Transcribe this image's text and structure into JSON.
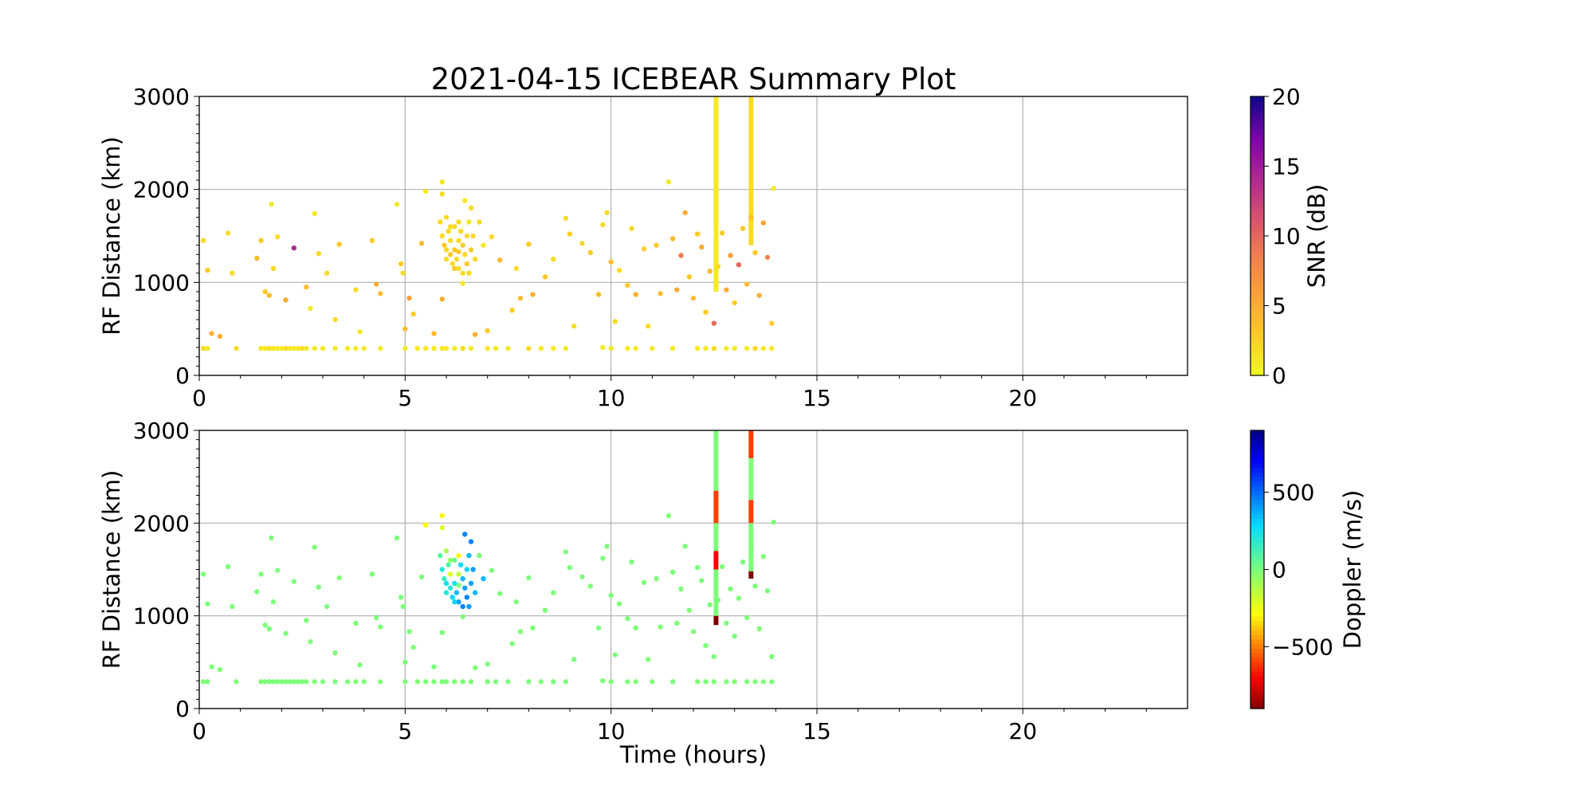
{
  "title": "2021-04-15 ICEBEAR Summary Plot",
  "chart_data": [
    {
      "type": "scatter",
      "panel": "snr",
      "xlabel": "",
      "ylabel": "RF Distance (km)",
      "xlim": [
        0,
        24
      ],
      "ylim": [
        0,
        3000
      ],
      "xticks": [
        "0",
        "5",
        "10",
        "15",
        "20"
      ],
      "yticks": [
        "0",
        "1000",
        "2000",
        "3000"
      ],
      "grid": true,
      "color_by": "snr",
      "colorbar": {
        "label": "SNR (dB)",
        "range": [
          0,
          20
        ],
        "ticks": [
          "0",
          "5",
          "10",
          "15",
          "20"
        ],
        "colormap": "plasma_r"
      }
    },
    {
      "type": "scatter",
      "panel": "doppler",
      "xlabel": "Time (hours)",
      "ylabel": "RF Distance (km)",
      "xlim": [
        0,
        24
      ],
      "ylim": [
        0,
        3000
      ],
      "xticks": [
        "0",
        "5",
        "10",
        "15",
        "20"
      ],
      "yticks": [
        "0",
        "1000",
        "2000",
        "3000"
      ],
      "grid": true,
      "color_by": "doppler",
      "colorbar": {
        "label": "Doppler (m/s)",
        "range": [
          -900,
          900
        ],
        "ticks": [
          "−500",
          "0",
          "500"
        ],
        "tick_values": [
          -500,
          0,
          500
        ],
        "colormap": "jet"
      }
    }
  ],
  "points_columns": [
    "time_h",
    "range_km",
    "snr_db",
    "doppler_ms"
  ],
  "points": [
    [
      0.1,
      290,
      2,
      0
    ],
    [
      0.2,
      290,
      1,
      0
    ],
    [
      0.9,
      290,
      2,
      0
    ],
    [
      1.5,
      290,
      1,
      0
    ],
    [
      1.6,
      290,
      1,
      0
    ],
    [
      1.7,
      290,
      2,
      0
    ],
    [
      1.8,
      290,
      1,
      0
    ],
    [
      1.9,
      290,
      1,
      0
    ],
    [
      2.0,
      290,
      1,
      0
    ],
    [
      2.1,
      290,
      2,
      0
    ],
    [
      2.2,
      290,
      1,
      0
    ],
    [
      2.3,
      290,
      1,
      0
    ],
    [
      2.4,
      290,
      1,
      0
    ],
    [
      2.5,
      290,
      2,
      0
    ],
    [
      2.6,
      290,
      1,
      0
    ],
    [
      2.8,
      290,
      1,
      0
    ],
    [
      3.0,
      290,
      1,
      0
    ],
    [
      3.3,
      290,
      1,
      0
    ],
    [
      3.6,
      290,
      1,
      0
    ],
    [
      3.8,
      290,
      1,
      0
    ],
    [
      4.0,
      290,
      1,
      0
    ],
    [
      4.4,
      290,
      1,
      0
    ],
    [
      5.0,
      290,
      1,
      0
    ],
    [
      5.3,
      290,
      1,
      0
    ],
    [
      5.5,
      290,
      1,
      0
    ],
    [
      5.7,
      290,
      1,
      0
    ],
    [
      5.9,
      290,
      1,
      0
    ],
    [
      6.0,
      290,
      1,
      0
    ],
    [
      6.2,
      290,
      1,
      0
    ],
    [
      6.4,
      290,
      2,
      0
    ],
    [
      6.6,
      290,
      1,
      0
    ],
    [
      7.0,
      290,
      1,
      0
    ],
    [
      7.2,
      290,
      1,
      0
    ],
    [
      7.5,
      290,
      1,
      0
    ],
    [
      8.0,
      290,
      2,
      0
    ],
    [
      8.3,
      290,
      1,
      0
    ],
    [
      8.6,
      290,
      1,
      0
    ],
    [
      8.9,
      290,
      1,
      0
    ],
    [
      9.8,
      300,
      1,
      0
    ],
    [
      10.0,
      290,
      1,
      0
    ],
    [
      10.4,
      290,
      1,
      0
    ],
    [
      10.6,
      290,
      1,
      0
    ],
    [
      11.0,
      290,
      1,
      0
    ],
    [
      11.5,
      290,
      1,
      0
    ],
    [
      12.1,
      290,
      1,
      0
    ],
    [
      12.3,
      290,
      1,
      0
    ],
    [
      12.5,
      290,
      2,
      0
    ],
    [
      12.8,
      290,
      1,
      0
    ],
    [
      13.0,
      290,
      1,
      0
    ],
    [
      13.3,
      290,
      1,
      0
    ],
    [
      13.5,
      290,
      2,
      0
    ],
    [
      13.7,
      290,
      1,
      0
    ],
    [
      13.9,
      290,
      1,
      0
    ],
    [
      0.1,
      1450,
      2,
      0
    ],
    [
      0.2,
      1130,
      3,
      0
    ],
    [
      0.3,
      450,
      5,
      0
    ],
    [
      0.5,
      420,
      5,
      0
    ],
    [
      0.7,
      1530,
      2,
      0
    ],
    [
      0.8,
      1100,
      2,
      0
    ],
    [
      1.4,
      1260,
      4,
      0
    ],
    [
      1.5,
      1450,
      3,
      0
    ],
    [
      1.6,
      900,
      3,
      0
    ],
    [
      1.7,
      860,
      4,
      0
    ],
    [
      1.75,
      1840,
      1,
      0
    ],
    [
      1.8,
      1150,
      2,
      0
    ],
    [
      1.9,
      1490,
      2,
      0
    ],
    [
      2.1,
      810,
      5,
      0
    ],
    [
      2.3,
      1370,
      14,
      0
    ],
    [
      2.6,
      950,
      4,
      0
    ],
    [
      2.7,
      720,
      1,
      0
    ],
    [
      2.8,
      1740,
      1,
      0
    ],
    [
      2.9,
      1310,
      2,
      0
    ],
    [
      3.1,
      1100,
      2,
      0
    ],
    [
      3.3,
      600,
      2,
      0
    ],
    [
      3.4,
      1410,
      3,
      0
    ],
    [
      3.8,
      920,
      2,
      0
    ],
    [
      3.9,
      470,
      1,
      0
    ],
    [
      4.2,
      1450,
      3,
      0
    ],
    [
      4.3,
      980,
      5,
      0
    ],
    [
      4.4,
      880,
      4,
      0
    ],
    [
      4.8,
      1840,
      1,
      0
    ],
    [
      4.9,
      1200,
      3,
      0
    ],
    [
      4.95,
      1100,
      2,
      0
    ],
    [
      5.0,
      500,
      4,
      0
    ],
    [
      5.1,
      830,
      6,
      0
    ],
    [
      5.2,
      660,
      3,
      0
    ],
    [
      5.4,
      1420,
      4,
      0
    ],
    [
      5.7,
      450,
      4,
      0
    ],
    [
      5.9,
      820,
      5,
      0
    ],
    [
      6.3,
      1330,
      3,
      0
    ],
    [
      6.4,
      990,
      1,
      0
    ],
    [
      6.7,
      440,
      5,
      0
    ],
    [
      7.0,
      480,
      3,
      0
    ],
    [
      7.1,
      1490,
      2,
      0
    ],
    [
      7.3,
      1240,
      4,
      0
    ],
    [
      7.6,
      700,
      3,
      0
    ],
    [
      7.7,
      1150,
      2,
      0
    ],
    [
      7.8,
      830,
      4,
      0
    ],
    [
      8.0,
      1410,
      3,
      0
    ],
    [
      8.1,
      870,
      5,
      0
    ],
    [
      8.4,
      1060,
      3,
      0
    ],
    [
      8.6,
      1250,
      2,
      0
    ],
    [
      8.9,
      1690,
      2,
      0
    ],
    [
      9.0,
      1520,
      3,
      0
    ],
    [
      9.1,
      530,
      2,
      0
    ],
    [
      9.3,
      1420,
      2,
      0
    ],
    [
      9.5,
      1320,
      3,
      0
    ],
    [
      9.7,
      870,
      4,
      0
    ],
    [
      9.8,
      1620,
      2,
      0
    ],
    [
      9.9,
      1750,
      2,
      0
    ],
    [
      10.0,
      1220,
      4,
      0
    ],
    [
      10.1,
      580,
      2,
      0
    ],
    [
      10.2,
      1130,
      2,
      0
    ],
    [
      10.4,
      970,
      3,
      0
    ],
    [
      10.5,
      1580,
      2,
      0
    ],
    [
      10.6,
      870,
      5,
      0
    ],
    [
      10.8,
      1360,
      3,
      0
    ],
    [
      10.9,
      530,
      2,
      0
    ],
    [
      11.1,
      1400,
      3,
      0
    ],
    [
      11.2,
      880,
      4,
      0
    ],
    [
      11.4,
      2080,
      1,
      0
    ],
    [
      11.5,
      1470,
      4,
      0
    ],
    [
      11.6,
      920,
      5,
      0
    ],
    [
      11.7,
      1290,
      9,
      0
    ],
    [
      11.8,
      1750,
      5,
      0
    ],
    [
      11.9,
      1060,
      3,
      0
    ],
    [
      12.0,
      830,
      4,
      0
    ],
    [
      12.1,
      1520,
      3,
      0
    ],
    [
      12.2,
      1380,
      5,
      0
    ],
    [
      12.3,
      680,
      3,
      0
    ],
    [
      12.4,
      1120,
      4,
      0
    ],
    [
      12.5,
      560,
      10,
      0
    ],
    [
      12.6,
      1170,
      2,
      0
    ],
    [
      12.7,
      1530,
      3,
      0
    ],
    [
      12.8,
      920,
      5,
      0
    ],
    [
      12.9,
      1290,
      6,
      0
    ],
    [
      13.0,
      780,
      3,
      0
    ],
    [
      13.1,
      1190,
      10,
      0
    ],
    [
      13.2,
      1580,
      3,
      0
    ],
    [
      13.3,
      980,
      4,
      0
    ],
    [
      13.4,
      1700,
      4,
      0
    ],
    [
      13.5,
      1320,
      3,
      0
    ],
    [
      13.6,
      860,
      5,
      0
    ],
    [
      13.7,
      1640,
      6,
      0
    ],
    [
      13.8,
      1270,
      8,
      0
    ],
    [
      13.9,
      560,
      3,
      0
    ],
    [
      13.95,
      2010,
      1,
      0
    ],
    [
      5.5,
      1980,
      1,
      -300
    ],
    [
      5.9,
      2080,
      1,
      -300
    ],
    [
      5.9,
      1950,
      2,
      -200
    ],
    [
      5.85,
      1650,
      2,
      80
    ],
    [
      5.9,
      1500,
      2,
      200
    ],
    [
      5.95,
      1400,
      3,
      150
    ],
    [
      6.0,
      1700,
      2,
      -100
    ],
    [
      6.0,
      1350,
      2,
      250
    ],
    [
      6.05,
      1550,
      2,
      100
    ],
    [
      6.1,
      1300,
      3,
      200
    ],
    [
      6.1,
      1450,
      2,
      -200
    ],
    [
      6.15,
      1200,
      2,
      300
    ],
    [
      6.2,
      1600,
      2,
      50
    ],
    [
      6.2,
      1350,
      3,
      250
    ],
    [
      6.25,
      1250,
      2,
      350
    ],
    [
      6.3,
      1450,
      2,
      -150
    ],
    [
      6.3,
      1150,
      2,
      400
    ],
    [
      6.35,
      1550,
      2,
      300
    ],
    [
      6.4,
      1400,
      3,
      350
    ],
    [
      6.4,
      1100,
      2,
      450
    ],
    [
      6.45,
      1300,
      2,
      400
    ],
    [
      6.5,
      1500,
      2,
      300
    ],
    [
      6.5,
      1200,
      3,
      450
    ],
    [
      6.55,
      1650,
      1,
      350
    ],
    [
      6.6,
      1800,
      2,
      450
    ],
    [
      6.6,
      1350,
      3,
      400
    ],
    [
      6.65,
      1500,
      2,
      400
    ],
    [
      6.7,
      1250,
      2,
      350
    ],
    [
      6.45,
      1880,
      1,
      450
    ],
    [
      6.3,
      1650,
      2,
      -300
    ],
    [
      6.0,
      1250,
      2,
      200
    ],
    [
      6.1,
      1600,
      2,
      -50
    ],
    [
      6.55,
      1100,
      2,
      400
    ],
    [
      6.2,
      1150,
      3,
      300
    ],
    [
      6.9,
      1400,
      1,
      350
    ],
    [
      6.8,
      1650,
      2,
      0
    ]
  ],
  "streaks": [
    {
      "time_h": 12.55,
      "range_km": [
        900,
        3000
      ],
      "snr_db": 1,
      "doppler_segments": [
        [
          900,
          1000,
          -900
        ],
        [
          1000,
          1500,
          0
        ],
        [
          1500,
          1700,
          -700
        ],
        [
          1700,
          2000,
          0
        ],
        [
          2000,
          2350,
          -600
        ],
        [
          2350,
          3000,
          0
        ]
      ]
    },
    {
      "time_h": 13.4,
      "range_km": [
        1400,
        3000
      ],
      "snr_db": 2,
      "doppler_segments": [
        [
          1400,
          1480,
          -900
        ],
        [
          1480,
          2000,
          0
        ],
        [
          2000,
          2250,
          -600
        ],
        [
          2250,
          2700,
          0
        ],
        [
          2700,
          3000,
          -600
        ]
      ]
    }
  ]
}
